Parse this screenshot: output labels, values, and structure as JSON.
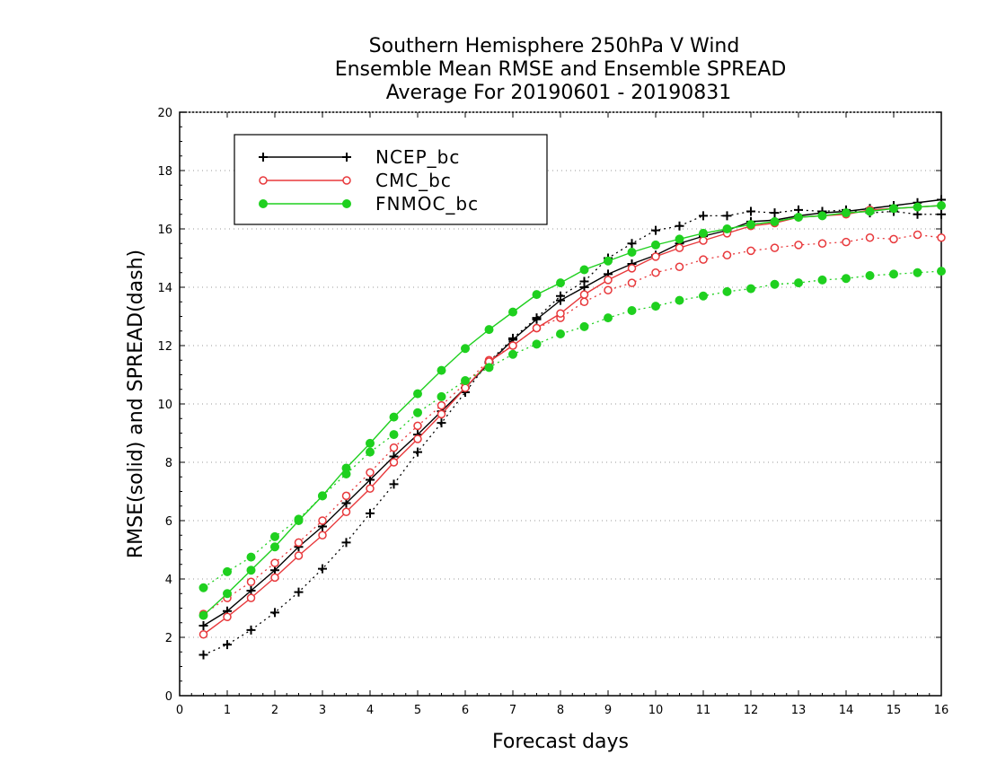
{
  "chart_data": {
    "type": "line",
    "title": [
      "Southern Hemisphere 250hPa V Wind",
      "Ensemble Mean RMSE and Ensemble SPREAD",
      "Average For 20190601 - 20190831"
    ],
    "xlabel": "Forecast days",
    "ylabel": "RMSE(solid) and SPREAD(dash)",
    "xlim": [
      0,
      16
    ],
    "ylim": [
      0,
      20
    ],
    "xticks": [
      "0",
      "1",
      "2",
      "3",
      "4",
      "5",
      "6",
      "7",
      "8",
      "9",
      "10",
      "11",
      "12",
      "13",
      "14",
      "15",
      "16"
    ],
    "yticks": [
      "0",
      "2",
      "4",
      "6",
      "8",
      "10",
      "12",
      "14",
      "16",
      "18",
      "20"
    ],
    "grid": "horizontal dotted",
    "legend_position": "top-left",
    "x": [
      0.5,
      1,
      1.5,
      2,
      2.5,
      3,
      3.5,
      4,
      4.5,
      5,
      5.5,
      6,
      6.5,
      7,
      7.5,
      8,
      8.5,
      9,
      9.5,
      10,
      10.5,
      11,
      11.5,
      12,
      12.5,
      13,
      13.5,
      14,
      14.5,
      15,
      15.5,
      16
    ],
    "series": [
      {
        "name": "NCEP_bc",
        "color": "#000000",
        "marker": "plus",
        "rmse": [
          2.4,
          2.9,
          3.6,
          4.3,
          5.1,
          5.8,
          6.6,
          7.4,
          8.2,
          8.95,
          9.75,
          10.55,
          11.4,
          12.2,
          12.9,
          13.55,
          14.0,
          14.45,
          14.8,
          15.1,
          15.5,
          15.75,
          15.95,
          16.25,
          16.3,
          16.45,
          16.55,
          16.6,
          16.7,
          16.8,
          16.9,
          17.0
        ],
        "spread": [
          1.4,
          1.75,
          2.25,
          2.85,
          3.55,
          4.35,
          5.25,
          6.25,
          7.25,
          8.35,
          9.35,
          10.4,
          11.45,
          12.25,
          12.95,
          13.7,
          14.2,
          15.0,
          15.5,
          15.95,
          16.1,
          16.45,
          16.45,
          16.6,
          16.55,
          16.65,
          16.6,
          16.65,
          16.55,
          16.6,
          16.5,
          16.5
        ]
      },
      {
        "name": "CMC_bc",
        "color": "#e8393c",
        "marker": "circle-open",
        "rmse": [
          2.1,
          2.7,
          3.35,
          4.05,
          4.8,
          5.5,
          6.3,
          7.1,
          8.0,
          8.8,
          9.65,
          10.55,
          11.45,
          12.0,
          12.6,
          13.1,
          13.75,
          14.25,
          14.65,
          15.05,
          15.35,
          15.6,
          15.85,
          16.1,
          16.2,
          16.4,
          16.45,
          16.5,
          16.65,
          16.7,
          16.75,
          16.8
        ],
        "spread": [
          2.8,
          3.35,
          3.9,
          4.55,
          5.25,
          6.0,
          6.85,
          7.65,
          8.5,
          9.25,
          9.95,
          10.7,
          11.5,
          12.0,
          12.6,
          12.95,
          13.5,
          13.9,
          14.15,
          14.5,
          14.7,
          14.95,
          15.1,
          15.25,
          15.35,
          15.45,
          15.5,
          15.55,
          15.7,
          15.65,
          15.8,
          15.7
        ]
      },
      {
        "name": "FNMOC_bc",
        "color": "#1fd01f",
        "marker": "circle-filled",
        "rmse": [
          2.75,
          3.5,
          4.3,
          5.1,
          6.0,
          6.85,
          7.8,
          8.65,
          9.55,
          10.35,
          11.15,
          11.9,
          12.55,
          13.15,
          13.75,
          14.15,
          14.6,
          14.9,
          15.2,
          15.45,
          15.65,
          15.85,
          16.0,
          16.15,
          16.25,
          16.4,
          16.45,
          16.55,
          16.6,
          16.7,
          16.75,
          16.8
        ],
        "spread": [
          3.7,
          4.25,
          4.75,
          5.45,
          6.05,
          6.85,
          7.6,
          8.35,
          8.95,
          9.7,
          10.25,
          10.8,
          11.25,
          11.7,
          12.05,
          12.4,
          12.65,
          12.95,
          13.2,
          13.35,
          13.55,
          13.7,
          13.85,
          13.95,
          14.1,
          14.15,
          14.25,
          14.3,
          14.4,
          14.45,
          14.5,
          14.55
        ]
      }
    ]
  }
}
